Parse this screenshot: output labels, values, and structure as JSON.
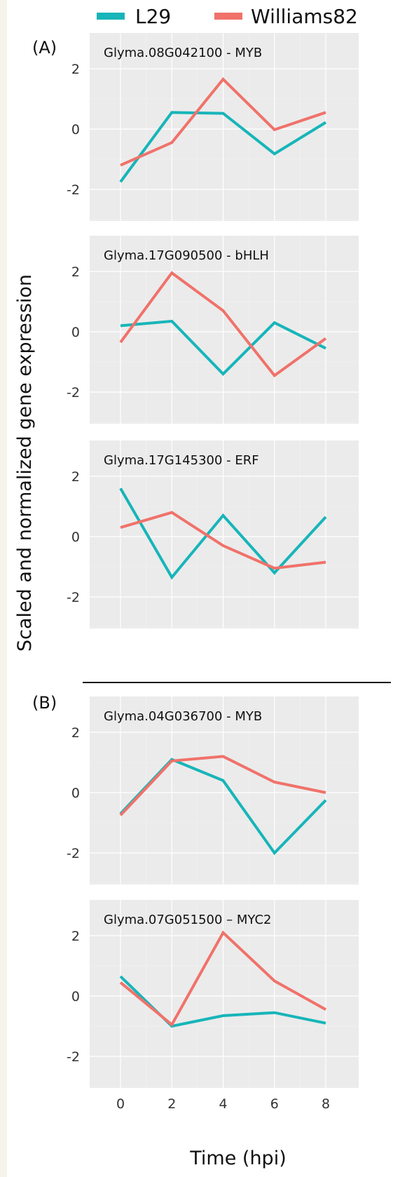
{
  "legend": [
    {
      "name": "L29",
      "color": "#17b5b9"
    },
    {
      "name": "Williams82",
      "color": "#f0726a"
    }
  ],
  "section_labels": [
    "(A)",
    "(B)"
  ],
  "ylabel": "Scaled and normalized gene expression",
  "xlabel": "Time (hpi)",
  "chart_data": [
    {
      "type": "line",
      "section": "(A)",
      "title": "Glyma.08G042100 - MYB",
      "x": [
        0,
        2,
        4,
        6,
        8
      ],
      "xticks": [
        "0",
        "2",
        "4",
        "6",
        "8"
      ],
      "yticks": [
        "-2",
        "0",
        "2"
      ],
      "ylim": [
        -3.3,
        2.9
      ],
      "grid": true,
      "series": [
        {
          "name": "L29",
          "values": [
            -1.75,
            0.55,
            0.52,
            -0.82,
            0.22
          ]
        },
        {
          "name": "Williams82",
          "values": [
            -1.2,
            -0.45,
            1.65,
            -0.02,
            0.55
          ]
        }
      ]
    },
    {
      "type": "line",
      "section": "(A)",
      "title": "Glyma.17G090500 - bHLH",
      "x": [
        0,
        2,
        4,
        6,
        8
      ],
      "xticks": [
        "0",
        "2",
        "4",
        "6",
        "8"
      ],
      "yticks": [
        "-2",
        "0",
        "2"
      ],
      "ylim": [
        -3.3,
        2.9
      ],
      "grid": true,
      "series": [
        {
          "name": "L29",
          "values": [
            0.2,
            0.35,
            -1.4,
            0.3,
            -0.55
          ]
        },
        {
          "name": "Williams82",
          "values": [
            -0.35,
            1.95,
            0.7,
            -1.45,
            -0.22
          ]
        }
      ]
    },
    {
      "type": "line",
      "section": "(A)",
      "title": "Glyma.17G145300 - ERF",
      "x": [
        0,
        2,
        4,
        6,
        8
      ],
      "xticks": [
        "0",
        "2",
        "4",
        "6",
        "8"
      ],
      "yticks": [
        "-2",
        "0",
        "2"
      ],
      "ylim": [
        -3.3,
        2.9
      ],
      "grid": true,
      "series": [
        {
          "name": "L29",
          "values": [
            1.6,
            -1.35,
            0.7,
            -1.2,
            0.65
          ]
        },
        {
          "name": "Williams82",
          "values": [
            0.3,
            0.8,
            -0.3,
            -1.05,
            -0.85
          ]
        }
      ]
    },
    {
      "type": "line",
      "section": "(B)",
      "title": "Glyma.04G036700 - MYB",
      "x": [
        0,
        2,
        4,
        6,
        8
      ],
      "xticks": [
        "0",
        "2",
        "4",
        "6",
        "8"
      ],
      "yticks": [
        "-2",
        "0",
        "2"
      ],
      "ylim": [
        -3.3,
        2.9
      ],
      "grid": true,
      "series": [
        {
          "name": "L29",
          "values": [
            -0.7,
            1.1,
            0.4,
            -2.0,
            -0.25
          ]
        },
        {
          "name": "Williams82",
          "values": [
            -0.75,
            1.05,
            1.2,
            0.35,
            0.0
          ]
        }
      ]
    },
    {
      "type": "line",
      "section": "(B)",
      "title": "Glyma.07G051500 – MYC2",
      "x": [
        0,
        2,
        4,
        6,
        8
      ],
      "xticks": [
        "0",
        "2",
        "4",
        "6",
        "8"
      ],
      "yticks": [
        "-2",
        "0",
        "2"
      ],
      "ylim": [
        -3.3,
        2.9
      ],
      "grid": true,
      "series": [
        {
          "name": "L29",
          "values": [
            0.65,
            -1.0,
            -0.65,
            -0.55,
            -0.9
          ]
        },
        {
          "name": "Williams82",
          "values": [
            0.45,
            -0.95,
            2.1,
            0.5,
            -0.45
          ]
        }
      ]
    }
  ]
}
